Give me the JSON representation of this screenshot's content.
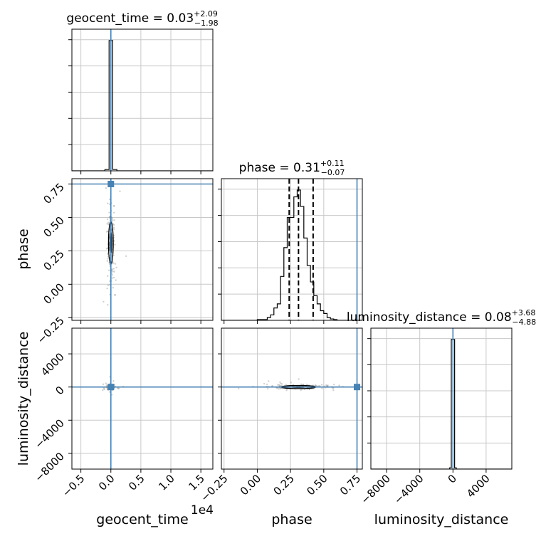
{
  "chart_data": {
    "type": "corner",
    "parameters": [
      "geocent_time",
      "phase",
      "luminosity_distance"
    ],
    "offset_text": "1e4",
    "titles": [
      {
        "param": "geocent_time",
        "prefix": "geocent_time = ",
        "value": "0.03",
        "plus": "+2.09",
        "minus": "−1.98"
      },
      {
        "param": "phase",
        "prefix": "phase = ",
        "value": "0.31",
        "plus": "+0.11",
        "minus": "−0.07"
      },
      {
        "param": "luminosity_distance",
        "prefix": "luminosity_distance = ",
        "value": "0.08",
        "plus": "+3.68",
        "minus": "−4.88"
      }
    ],
    "axes": {
      "geocent_time": {
        "range": [
          -0.65,
          1.7
        ],
        "ticks": [
          -0.5,
          0.0,
          0.5,
          1.0,
          1.5
        ],
        "tick_labels": [
          "−0.5",
          "0.0",
          "0.5",
          "1.0",
          "1.5"
        ],
        "label": "geocent_time"
      },
      "phase": {
        "range": [
          -0.27,
          0.79
        ],
        "ticks": [
          -0.25,
          0.0,
          0.25,
          0.5,
          0.75
        ],
        "tick_labels": [
          "−0.25",
          "0.00",
          "0.25",
          "0.50",
          "0.75"
        ],
        "label": "phase"
      },
      "luminosity_distance": {
        "range": [
          -9900,
          7100
        ],
        "ticks": [
          -8000,
          -4000,
          0,
          4000
        ],
        "tick_labels": [
          "−8000",
          "−4000",
          "0",
          "4000"
        ],
        "label": "luminosity_distance"
      }
    },
    "injection": {
      "geocent_time": 0.0,
      "phase": 0.75,
      "luminosity_distance": 0
    },
    "quantiles": {
      "phase": [
        0.24,
        0.31,
        0.42
      ]
    },
    "histograms": {
      "geocent_time": {
        "bin_edges": [
          -0.1,
          -0.03,
          0.03,
          0.1,
          0.17
        ],
        "counts": [
          1,
          100,
          1,
          0
        ]
      },
      "phase": {
        "bin_edges": [
          -0.05,
          0.0,
          0.025,
          0.05,
          0.075,
          0.1,
          0.125,
          0.15,
          0.175,
          0.2,
          0.225,
          0.25,
          0.275,
          0.3,
          0.325,
          0.35,
          0.375,
          0.4,
          0.425,
          0.45,
          0.475,
          0.5,
          0.525,
          0.55,
          0.575,
          0.6,
          0.625,
          0.65
        ],
        "counts": [
          0,
          0.5,
          0.5,
          0.5,
          2,
          4,
          9,
          12,
          32,
          53,
          75,
          75,
          90,
          95,
          83,
          60,
          40,
          28,
          18,
          12,
          7,
          5,
          2,
          1,
          0.5,
          0,
          0
        ]
      },
      "luminosity_distance": {
        "bin_edges": [
          -400,
          -200,
          0,
          200,
          400,
          600,
          800
        ],
        "counts": [
          1,
          100,
          100,
          1,
          0,
          0
        ]
      }
    },
    "grid": true
  }
}
